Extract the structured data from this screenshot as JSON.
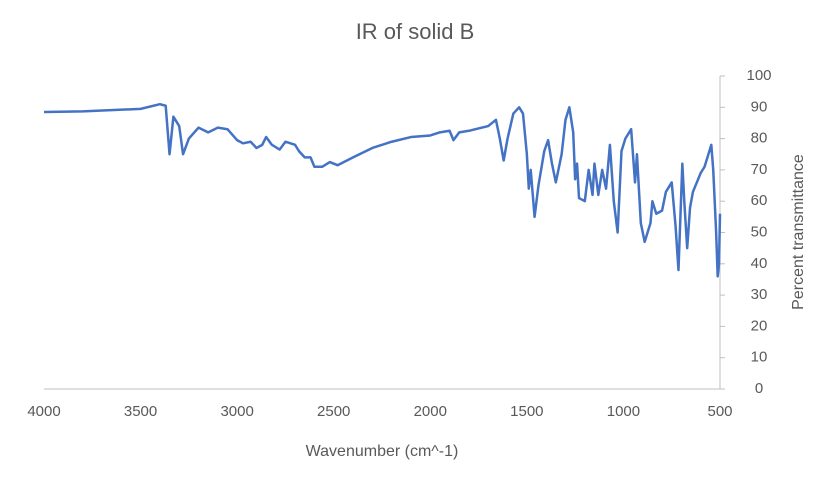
{
  "chart_data": {
    "type": "line",
    "title": "IR of solid B",
    "x_label": "Wavenumber (cm^-1)",
    "y_label": "Percent transmittance",
    "x": [
      4000,
      3800,
      3500,
      3400,
      3370,
      3350,
      3330,
      3300,
      3280,
      3250,
      3200,
      3150,
      3100,
      3050,
      3000,
      2970,
      2930,
      2900,
      2870,
      2850,
      2820,
      2780,
      2750,
      2700,
      2680,
      2650,
      2620,
      2600,
      2560,
      2520,
      2480,
      2400,
      2300,
      2200,
      2100,
      2000,
      1950,
      1900,
      1880,
      1850,
      1800,
      1700,
      1660,
      1640,
      1620,
      1600,
      1570,
      1540,
      1520,
      1500,
      1490,
      1480,
      1460,
      1440,
      1410,
      1390,
      1370,
      1350,
      1320,
      1300,
      1280,
      1260,
      1250,
      1240,
      1230,
      1200,
      1180,
      1160,
      1150,
      1130,
      1110,
      1090,
      1070,
      1050,
      1030,
      1010,
      990,
      960,
      940,
      930,
      910,
      890,
      860,
      850,
      830,
      800,
      780,
      760,
      750,
      730,
      715,
      705,
      695,
      685,
      670,
      655,
      640,
      620,
      600,
      580,
      560,
      545,
      535,
      520,
      512,
      505,
      500
    ],
    "values": [
      88.5,
      88.7,
      89.5,
      91,
      90.5,
      75,
      87,
      84,
      75,
      80,
      83.5,
      82,
      83.5,
      83,
      79.5,
      78.5,
      79,
      77,
      78,
      80.5,
      78,
      76.5,
      79,
      78,
      76,
      74,
      74,
      71,
      71,
      72.5,
      71.5,
      74,
      77,
      79,
      80.5,
      81,
      82,
      82.5,
      79.5,
      82,
      82.5,
      84,
      86,
      80,
      73,
      80,
      88,
      90,
      88,
      75,
      64,
      70,
      55,
      65,
      76,
      79.5,
      72,
      66,
      75,
      86,
      90,
      82,
      67,
      72,
      61,
      60,
      70,
      62,
      72,
      62,
      70,
      64,
      78,
      60,
      50,
      76,
      80,
      83,
      66,
      75,
      53,
      47,
      53,
      60,
      56,
      57,
      63,
      65,
      66,
      52,
      38,
      55,
      72,
      60,
      45,
      58,
      63,
      66,
      69,
      71,
      75,
      78,
      70,
      50,
      36,
      40,
      56
    ],
    "color": "#4472c4",
    "x_reversed": true,
    "y_axis_side": "right",
    "grid": false,
    "xlim": [
      4000,
      500
    ],
    "xticks": [
      4000,
      3500,
      3000,
      2500,
      2000,
      1500,
      1000,
      500
    ],
    "ylim": [
      0,
      100
    ],
    "yticks": [
      0,
      10,
      20,
      30,
      40,
      50,
      60,
      70,
      80,
      90,
      100
    ]
  }
}
